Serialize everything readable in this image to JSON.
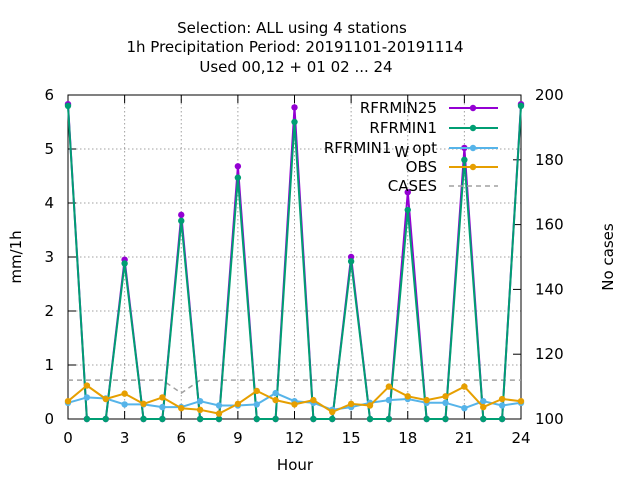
{
  "chart_data": {
    "type": "line",
    "title_lines": [
      "Selection: ALL using     4 stations",
      "1h Precipitation   Period: 20191101-20191114",
      "Used  00,12  + 01 02 ... 24"
    ],
    "xlabel": "Hour",
    "ylabel": "mm/1h",
    "y2label": "No cases",
    "xlim": [
      0,
      24
    ],
    "ylim": [
      0,
      6
    ],
    "y2lim": [
      100,
      200
    ],
    "xticks": [
      0,
      3,
      6,
      9,
      12,
      15,
      18,
      21,
      24
    ],
    "yticks": [
      0,
      1,
      2,
      3,
      4,
      5,
      6
    ],
    "y2ticks": [
      100,
      120,
      140,
      160,
      180,
      200
    ],
    "grid": true,
    "legend_position": "top-right",
    "x": [
      0,
      1,
      2,
      3,
      4,
      5,
      6,
      7,
      8,
      9,
      10,
      11,
      12,
      13,
      14,
      15,
      16,
      17,
      18,
      19,
      20,
      21,
      22,
      23,
      24
    ],
    "series": [
      {
        "name": "RFRMIN25",
        "color": "#9400d3",
        "axis": "y",
        "style": "line-points",
        "values": [
          5.83,
          0.0,
          0.0,
          2.95,
          0.0,
          0.0,
          3.78,
          0.0,
          0.0,
          4.68,
          0.0,
          0.0,
          5.77,
          0.0,
          0.0,
          3.0,
          0.0,
          0.0,
          4.2,
          0.0,
          0.0,
          5.02,
          0.0,
          0.0,
          5.83
        ]
      },
      {
        "name": "RFRMIN1",
        "color": "#009e73",
        "axis": "y",
        "style": "line-points",
        "values": [
          5.8,
          0.0,
          0.0,
          2.88,
          0.0,
          0.0,
          3.67,
          0.0,
          0.0,
          4.47,
          0.0,
          0.0,
          5.5,
          0.0,
          0.0,
          2.92,
          0.0,
          0.0,
          3.87,
          0.0,
          0.0,
          4.8,
          0.0,
          0.0,
          5.8
        ]
      },
      {
        "name_main": "RFRMIN1",
        "name_sub": "W",
        "name_tail": "opt",
        "color": "#56b4e9",
        "axis": "y",
        "style": "line-points",
        "values": [
          0.3,
          0.4,
          0.38,
          0.27,
          0.27,
          0.22,
          0.22,
          0.33,
          0.25,
          0.25,
          0.27,
          0.48,
          0.33,
          0.3,
          0.17,
          0.22,
          0.3,
          0.35,
          0.37,
          0.3,
          0.3,
          0.2,
          0.33,
          0.25,
          0.3
        ]
      },
      {
        "name": "OBS",
        "color": "#e69f00",
        "axis": "y",
        "style": "line-points",
        "values": [
          0.33,
          0.62,
          0.37,
          0.47,
          0.28,
          0.4,
          0.2,
          0.17,
          0.1,
          0.28,
          0.52,
          0.35,
          0.27,
          0.35,
          0.13,
          0.28,
          0.25,
          0.6,
          0.42,
          0.35,
          0.42,
          0.6,
          0.22,
          0.37,
          0.33
        ]
      },
      {
        "name": "CASES",
        "color": "#a0a0a0",
        "axis": "y2",
        "style": "dashed",
        "values": [
          112,
          112,
          112,
          112,
          112,
          112,
          108,
          112,
          112,
          112,
          112,
          112,
          112,
          112,
          112,
          112,
          112,
          112,
          112,
          112,
          112,
          112,
          112,
          112,
          112
        ]
      }
    ]
  }
}
